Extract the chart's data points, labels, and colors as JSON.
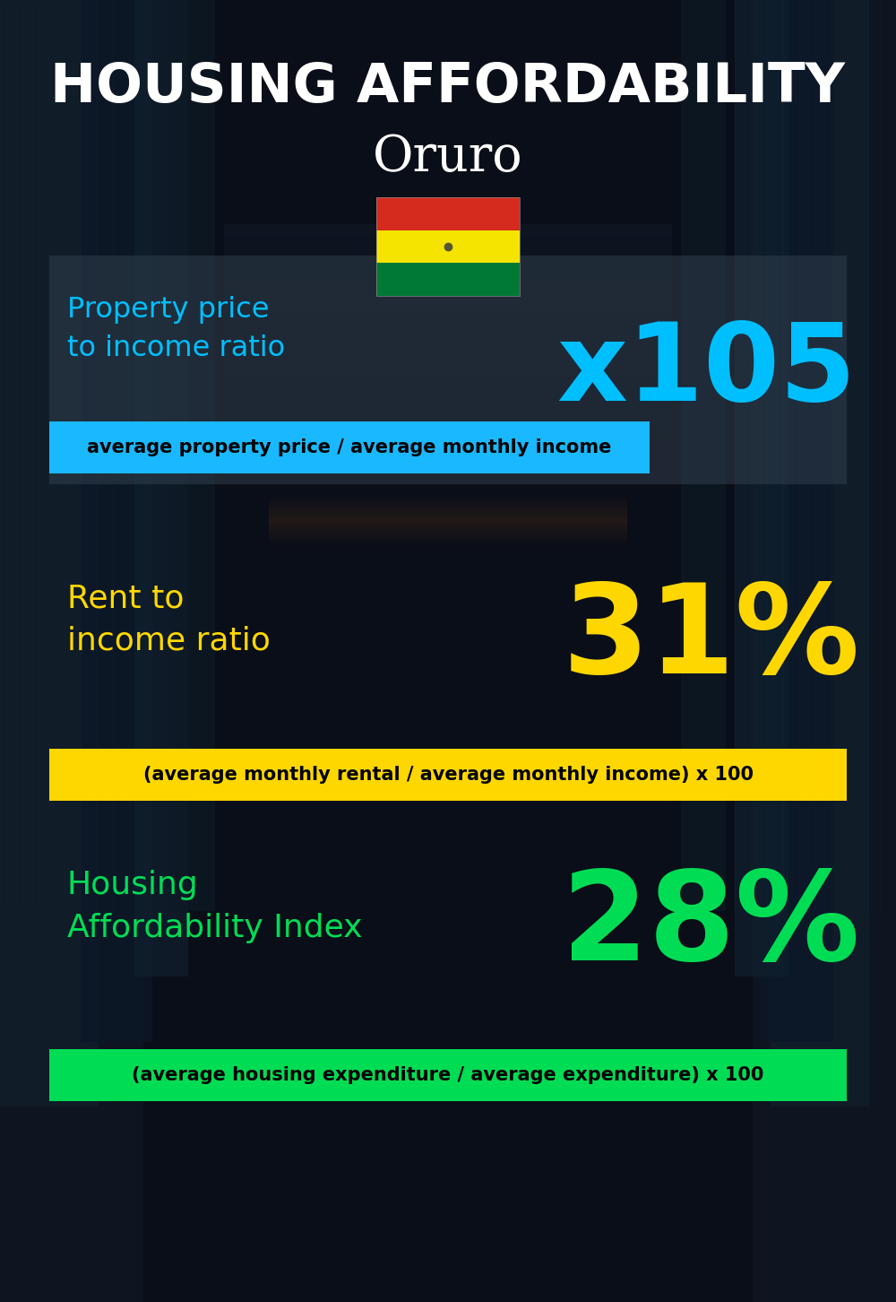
{
  "title_main": "HOUSING AFFORDABILITY",
  "title_city": "Oruro",
  "flag_emoji": "🇧🇴",
  "bg_color": "#0a0f1a",
  "section1_label": "Property price\nto income ratio",
  "section1_value": "x105",
  "section1_label_color": "#00bfff",
  "section1_value_color": "#00bfff",
  "section1_banner_text": "average property price / average monthly income",
  "section1_banner_bg": "#1ab8ff",
  "section1_banner_text_color": "#000000",
  "section2_label": "Rent to\nincome ratio",
  "section2_value": "31%",
  "section2_label_color": "#ffd700",
  "section2_value_color": "#ffd700",
  "section2_banner_text": "(average monthly rental / average monthly income) x 100",
  "section2_banner_bg": "#ffd700",
  "section2_banner_text_color": "#000000",
  "section3_label": "Housing\nAffordability Index",
  "section3_value": "28%",
  "section3_label_color": "#00dd55",
  "section3_value_color": "#00dd55",
  "section3_banner_text": "(average housing expenditure / average expenditure) x 100",
  "section3_banner_bg": "#00dd55",
  "section3_banner_text_color": "#000000",
  "title_main_color": "#ffffff",
  "title_city_color": "#ffffff"
}
